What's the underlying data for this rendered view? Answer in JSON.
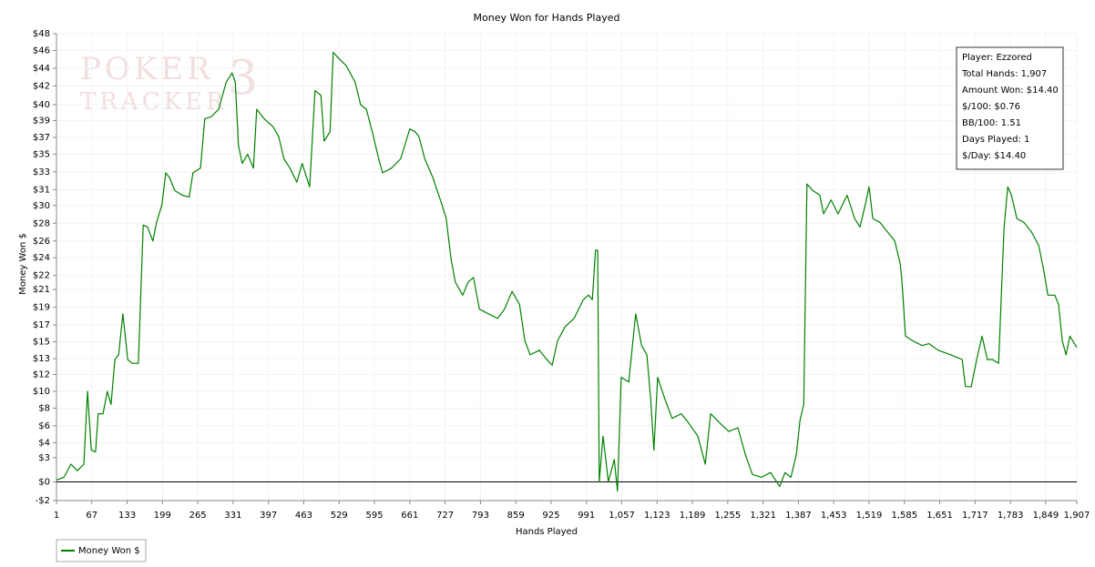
{
  "chart_data": {
    "type": "line",
    "title": "Money Won for Hands Played",
    "xlabel": "Hands Played",
    "ylabel": "Money Won $",
    "watermark": [
      "POKER",
      "TRACKER",
      "3"
    ],
    "annotations": [
      "Player: Ezzored",
      "Total Hands: 1,907",
      "Amount Won: $14.40",
      "$/100: $0.76",
      "BB/100: 1.51",
      "Days Played: 1",
      "$/Day: $14.40"
    ],
    "legend": "bottom-left",
    "grid": true,
    "xlim": [
      1,
      1907
    ],
    "ylim": [
      -2,
      48
    ],
    "xticks": [
      1,
      67,
      133,
      199,
      265,
      331,
      397,
      463,
      529,
      595,
      661,
      727,
      793,
      859,
      925,
      991,
      {
        "value": 1057,
        "label": "1,057"
      },
      {
        "value": 1123,
        "label": "1,123"
      },
      {
        "value": 1189,
        "label": "1,189"
      },
      {
        "value": 1255,
        "label": "1,255"
      },
      {
        "value": 1321,
        "label": "1,321"
      },
      {
        "value": 1387,
        "label": "1,387"
      },
      {
        "value": 1453,
        "label": "1,453"
      },
      {
        "value": 1519,
        "label": "1,519"
      },
      {
        "value": 1585,
        "label": "1,585"
      },
      {
        "value": 1651,
        "label": "1,651"
      },
      {
        "value": 1717,
        "label": "1,717"
      },
      {
        "value": 1783,
        "label": "1,783"
      },
      {
        "value": 1849,
        "label": "1,849"
      },
      {
        "value": 1907,
        "label": "1,907"
      }
    ],
    "yticks": [
      {
        "value": 48,
        "label": "$48"
      },
      {
        "value": 46.2,
        "label": "$46"
      },
      {
        "value": 44.3,
        "label": "$44"
      },
      {
        "value": 42.4,
        "label": "$42"
      },
      {
        "value": 40.4,
        "label": "$40"
      },
      {
        "value": 38.7,
        "label": "$39"
      },
      {
        "value": 36.9,
        "label": "$37"
      },
      {
        "value": 35.1,
        "label": "$35"
      },
      {
        "value": 33.2,
        "label": "$33"
      },
      {
        "value": 31.3,
        "label": "$31"
      },
      {
        "value": 29.6,
        "label": "$30"
      },
      {
        "value": 27.7,
        "label": "$28"
      },
      {
        "value": 25.8,
        "label": "$26"
      },
      {
        "value": 24.0,
        "label": "$24"
      },
      {
        "value": 22.1,
        "label": "$22"
      },
      {
        "value": 20.6,
        "label": "$21"
      },
      {
        "value": 18.7,
        "label": "$19"
      },
      {
        "value": 16.8,
        "label": "$17"
      },
      {
        "value": 15.0,
        "label": "$15"
      },
      {
        "value": 13.2,
        "label": "$13"
      },
      {
        "value": 11.5,
        "label": "$12"
      },
      {
        "value": 9.7,
        "label": "$10"
      },
      {
        "value": 7.9,
        "label": "$8"
      },
      {
        "value": 6.0,
        "label": "$6"
      },
      {
        "value": 4.2,
        "label": "$4"
      },
      {
        "value": 2.6,
        "label": "$3"
      },
      {
        "value": 0,
        "label": "$0"
      },
      {
        "value": -2,
        "label": "-$2"
      }
    ],
    "x": [
      1,
      15,
      28,
      40,
      52,
      59,
      66,
      74,
      79,
      88,
      96,
      103,
      110,
      117,
      125,
      134,
      142,
      154,
      163,
      171,
      181,
      188,
      198,
      205,
      212,
      222,
      236,
      249,
      256,
      270,
      278,
      290,
      304,
      318,
      329,
      335,
      341,
      348,
      358,
      369,
      375,
      389,
      406,
      416,
      426,
      437,
      450,
      460,
      474,
      484,
      495,
      501,
      512,
      518,
      529,
      542,
      559,
      569,
      580,
      593,
      603,
      610,
      627,
      644,
      661,
      671,
      678,
      689,
      704,
      721,
      729,
      738,
      746,
      760,
      770,
      780,
      791,
      808,
      825,
      838,
      852,
      866,
      876,
      886,
      903,
      917,
      927,
      937,
      951,
      968,
      985,
      995,
      1002,
      1008,
      1012,
      1015,
      1022,
      1032,
      1043,
      1049,
      1056,
      1070,
      1083,
      1094,
      1104,
      1111,
      1117,
      1124,
      1138,
      1151,
      1168,
      1182,
      1199,
      1213,
      1223,
      1240,
      1257,
      1274,
      1288,
      1301,
      1318,
      1335,
      1352,
      1362,
      1373,
      1383,
      1390,
      1397,
      1403,
      1414,
      1427,
      1434,
      1448,
      1461,
      1478,
      1492,
      1502,
      1512,
      1519,
      1526,
      1539,
      1553,
      1567,
      1577,
      1580,
      1587,
      1601,
      1618,
      1631,
      1648,
      1672,
      1693,
      1699,
      1710,
      1720,
      1730,
      1740,
      1750,
      1761,
      1771,
      1778,
      1785,
      1795,
      1808,
      1822,
      1836,
      1846,
      1853,
      1866,
      1873,
      1880,
      1887,
      1894,
      1905,
      1907
    ],
    "series": [
      {
        "name": "Money Won $",
        "color": "#008000",
        "values": [
          0.2,
          0.5,
          1.9,
          1.2,
          1.9,
          9.7,
          3.4,
          3.2,
          7.3,
          7.3,
          9.7,
          8.3,
          13.1,
          13.6,
          18.0,
          13.1,
          12.7,
          12.7,
          27.5,
          27.3,
          25.8,
          27.8,
          29.7,
          33.1,
          32.6,
          31.2,
          30.7,
          30.5,
          33.1,
          33.6,
          38.9,
          39.1,
          39.9,
          42.8,
          43.8,
          42.8,
          36.0,
          34.1,
          35.1,
          33.6,
          39.9,
          38.9,
          38.0,
          37.0,
          34.6,
          33.6,
          32.1,
          34.1,
          31.6,
          41.9,
          41.4,
          36.5,
          37.5,
          46.0,
          45.3,
          44.6,
          42.8,
          40.4,
          39.9,
          37.0,
          34.6,
          33.1,
          33.6,
          34.6,
          37.8,
          37.5,
          37.0,
          34.6,
          32.6,
          29.7,
          28.2,
          23.9,
          21.4,
          20.0,
          21.4,
          21.9,
          18.5,
          18.0,
          17.5,
          18.5,
          20.4,
          19.0,
          15.1,
          13.6,
          14.1,
          13.1,
          12.5,
          15.1,
          16.6,
          17.5,
          19.5,
          20.0,
          19.5,
          24.8,
          24.8,
          0,
          4.9,
          0,
          2.4,
          -1.0,
          11.2,
          10.7,
          18.0,
          14.6,
          13.6,
          8.8,
          3.4,
          11.2,
          8.8,
          6.8,
          7.3,
          6.3,
          4.9,
          1.9,
          7.3,
          6.3,
          5.4,
          5.8,
          2.9,
          0.8,
          0.5,
          1.0,
          -0.5,
          1.0,
          0.5,
          2.9,
          6.6,
          8.3,
          31.9,
          31.2,
          30.7,
          28.7,
          30.2,
          28.7,
          30.7,
          28.2,
          27.3,
          29.7,
          31.6,
          28.2,
          27.8,
          26.8,
          25.8,
          23.4,
          21.9,
          15.6,
          15.1,
          14.6,
          14.8,
          14.1,
          13.6,
          13.1,
          10.2,
          10.2,
          13.1,
          15.6,
          13.1,
          13.1,
          12.7,
          27.1,
          31.6,
          30.7,
          28.2,
          27.8,
          26.8,
          25.3,
          22.4,
          20.0,
          20.0,
          19.0,
          15.1,
          13.6,
          15.6,
          14.6,
          14.4
        ]
      }
    ]
  }
}
